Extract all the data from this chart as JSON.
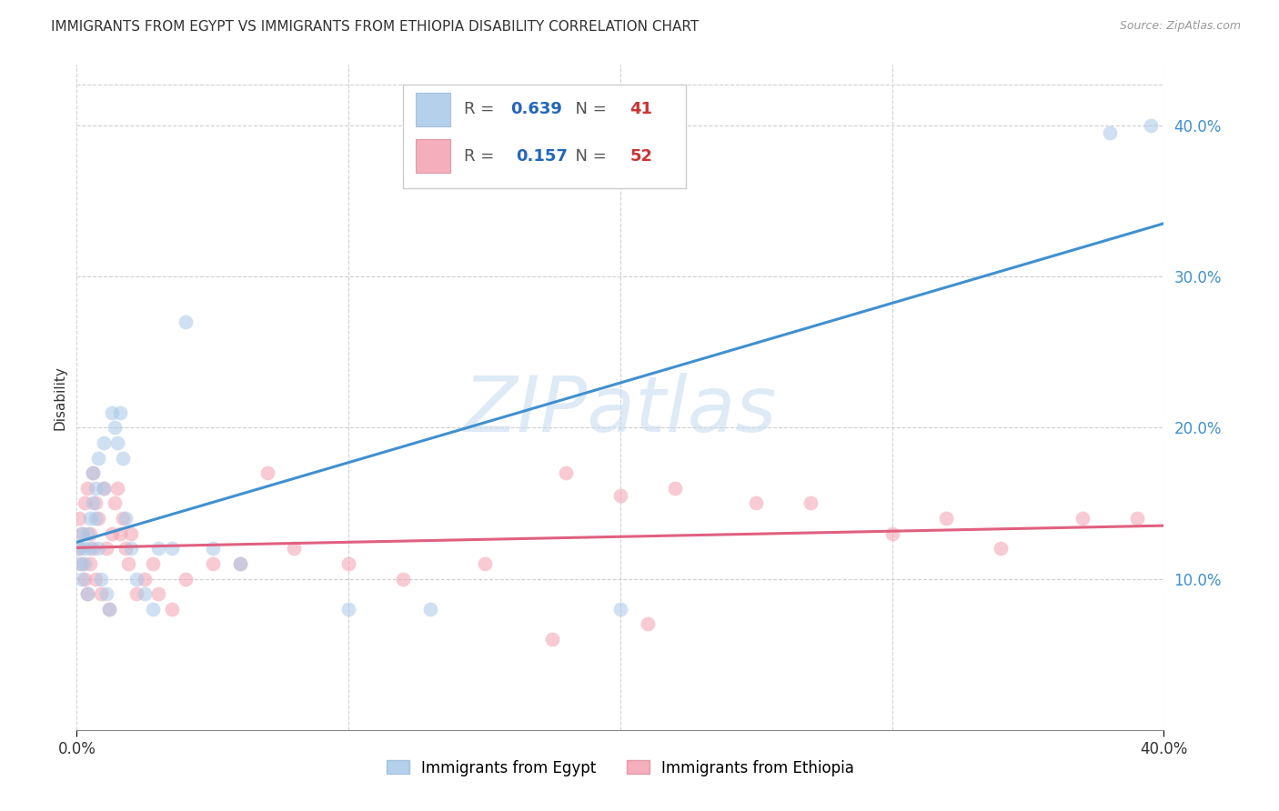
{
  "title": "IMMIGRANTS FROM EGYPT VS IMMIGRANTS FROM ETHIOPIA DISABILITY CORRELATION CHART",
  "source": "Source: ZipAtlas.com",
  "ylabel": "Disability",
  "watermark": "ZIPatlas",
  "egypt_color": "#a8c8e8",
  "ethiopia_color": "#f4a0b0",
  "egypt_line_color": "#4090d0",
  "ethiopia_line_color": "#e06080",
  "egypt_R": 0.639,
  "egypt_N": 41,
  "ethiopia_R": 0.157,
  "ethiopia_N": 52,
  "x_min": 0.0,
  "x_max": 0.4,
  "y_min": 0.0,
  "y_max": 0.44,
  "right_yticks": [
    0.1,
    0.2,
    0.3,
    0.4
  ],
  "right_yticklabels": [
    "10.0%",
    "20.0%",
    "30.0%",
    "40.0%"
  ],
  "grid_color": "#d0d0d0",
  "background_color": "#ffffff",
  "egypt_x": [
    0.001,
    0.001,
    0.002,
    0.002,
    0.003,
    0.003,
    0.004,
    0.004,
    0.005,
    0.005,
    0.006,
    0.006,
    0.007,
    0.007,
    0.008,
    0.008,
    0.009,
    0.01,
    0.01,
    0.011,
    0.012,
    0.013,
    0.014,
    0.015,
    0.016,
    0.017,
    0.018,
    0.02,
    0.022,
    0.025,
    0.028,
    0.03,
    0.035,
    0.04,
    0.05,
    0.06,
    0.1,
    0.13,
    0.2,
    0.38,
    0.395
  ],
  "egypt_y": [
    0.12,
    0.11,
    0.13,
    0.1,
    0.12,
    0.11,
    0.09,
    0.13,
    0.14,
    0.12,
    0.15,
    0.17,
    0.16,
    0.14,
    0.18,
    0.12,
    0.1,
    0.19,
    0.16,
    0.09,
    0.08,
    0.21,
    0.2,
    0.19,
    0.21,
    0.18,
    0.14,
    0.12,
    0.1,
    0.09,
    0.08,
    0.12,
    0.12,
    0.27,
    0.12,
    0.11,
    0.08,
    0.08,
    0.08,
    0.395,
    0.4
  ],
  "ethiopia_x": [
    0.001,
    0.001,
    0.002,
    0.002,
    0.003,
    0.003,
    0.004,
    0.004,
    0.005,
    0.005,
    0.006,
    0.006,
    0.007,
    0.007,
    0.008,
    0.009,
    0.01,
    0.011,
    0.012,
    0.013,
    0.014,
    0.015,
    0.016,
    0.017,
    0.018,
    0.019,
    0.02,
    0.022,
    0.025,
    0.028,
    0.03,
    0.035,
    0.04,
    0.05,
    0.06,
    0.07,
    0.08,
    0.1,
    0.12,
    0.15,
    0.18,
    0.2,
    0.22,
    0.25,
    0.27,
    0.3,
    0.32,
    0.34,
    0.37,
    0.39,
    0.175,
    0.21
  ],
  "ethiopia_y": [
    0.12,
    0.14,
    0.11,
    0.13,
    0.1,
    0.15,
    0.09,
    0.16,
    0.13,
    0.11,
    0.12,
    0.17,
    0.1,
    0.15,
    0.14,
    0.09,
    0.16,
    0.12,
    0.08,
    0.13,
    0.15,
    0.16,
    0.13,
    0.14,
    0.12,
    0.11,
    0.13,
    0.09,
    0.1,
    0.11,
    0.09,
    0.08,
    0.1,
    0.11,
    0.11,
    0.17,
    0.12,
    0.11,
    0.1,
    0.11,
    0.17,
    0.155,
    0.16,
    0.15,
    0.15,
    0.13,
    0.14,
    0.12,
    0.14,
    0.14,
    0.06,
    0.07
  ]
}
